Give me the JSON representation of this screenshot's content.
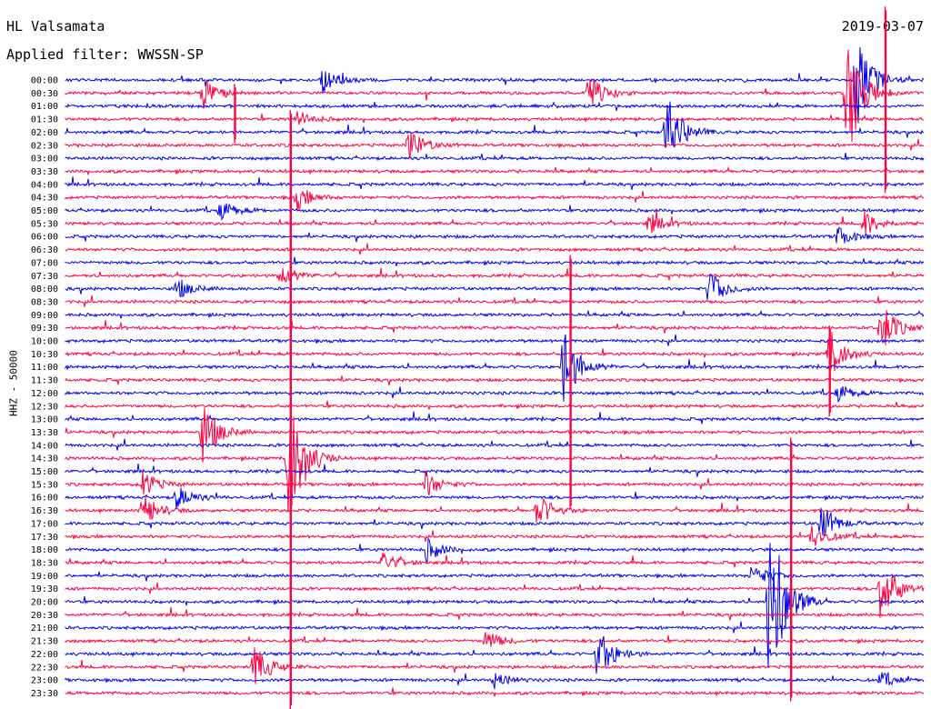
{
  "header": {
    "station": "HL Valsamata",
    "filter": "Applied filter: WWSSN-SP",
    "date": "2019-03-07"
  },
  "chart_data": {
    "type": "line",
    "title": "HL Valsamata",
    "subtitle": "Applied filter: WWSSN-SP",
    "ylabel": "HHZ - 50000",
    "xlabel": "",
    "grid": false,
    "rows": [
      "00:00",
      "00:30",
      "01:00",
      "01:30",
      "02:00",
      "02:30",
      "03:00",
      "03:30",
      "04:00",
      "04:30",
      "05:00",
      "05:30",
      "06:00",
      "06:30",
      "07:00",
      "07:30",
      "08:00",
      "08:30",
      "09:00",
      "09:30",
      "10:00",
      "10:30",
      "11:00",
      "11:30",
      "12:00",
      "12:30",
      "13:00",
      "13:30",
      "14:00",
      "14:30",
      "15:00",
      "15:30",
      "16:00",
      "16:30",
      "17:00",
      "17:30",
      "18:00",
      "18:30",
      "19:00",
      "19:30",
      "20:00",
      "20:30",
      "21:00",
      "21:30",
      "22:00",
      "22:30",
      "23:00",
      "23:30"
    ],
    "colors": {
      "even_rows": "#0000ee",
      "odd_rows": "#ff0040"
    },
    "events": [
      {
        "row": 0,
        "x_frac": 0.3,
        "amp": 14
      },
      {
        "row": 0,
        "x_frac": 0.92,
        "amp": 60
      },
      {
        "row": 1,
        "x_frac": 0.16,
        "amp": 18
      },
      {
        "row": 1,
        "x_frac": 0.61,
        "amp": 22
      },
      {
        "row": 1,
        "x_frac": 0.91,
        "amp": 80
      },
      {
        "row": 3,
        "x_frac": 0.27,
        "amp": 9
      },
      {
        "row": 4,
        "x_frac": 0.7,
        "amp": 45
      },
      {
        "row": 5,
        "x_frac": 0.4,
        "amp": 20
      },
      {
        "row": 9,
        "x_frac": 0.27,
        "amp": 14
      },
      {
        "row": 10,
        "x_frac": 0.18,
        "amp": 12
      },
      {
        "row": 11,
        "x_frac": 0.68,
        "amp": 12
      },
      {
        "row": 11,
        "x_frac": 0.93,
        "amp": 15
      },
      {
        "row": 12,
        "x_frac": 0.9,
        "amp": 12
      },
      {
        "row": 15,
        "x_frac": 0.25,
        "amp": 14
      },
      {
        "row": 16,
        "x_frac": 0.13,
        "amp": 12
      },
      {
        "row": 16,
        "x_frac": 0.75,
        "amp": 22
      },
      {
        "row": 19,
        "x_frac": 0.95,
        "amp": 30
      },
      {
        "row": 21,
        "x_frac": 0.89,
        "amp": 30
      },
      {
        "row": 22,
        "x_frac": 0.58,
        "amp": 45
      },
      {
        "row": 24,
        "x_frac": 0.9,
        "amp": 10
      },
      {
        "row": 27,
        "x_frac": 0.16,
        "amp": 35
      },
      {
        "row": 29,
        "x_frac": 0.26,
        "amp": 90
      },
      {
        "row": 31,
        "x_frac": 0.09,
        "amp": 15
      },
      {
        "row": 31,
        "x_frac": 0.42,
        "amp": 14
      },
      {
        "row": 32,
        "x_frac": 0.13,
        "amp": 14
      },
      {
        "row": 33,
        "x_frac": 0.09,
        "amp": 20
      },
      {
        "row": 33,
        "x_frac": 0.55,
        "amp": 20
      },
      {
        "row": 34,
        "x_frac": 0.88,
        "amp": 22
      },
      {
        "row": 35,
        "x_frac": 0.87,
        "amp": 15
      },
      {
        "row": 36,
        "x_frac": 0.42,
        "amp": 14
      },
      {
        "row": 37,
        "x_frac": 0.37,
        "amp": 12
      },
      {
        "row": 38,
        "x_frac": 0.8,
        "amp": 14
      },
      {
        "row": 39,
        "x_frac": 0.95,
        "amp": 40
      },
      {
        "row": 40,
        "x_frac": 0.82,
        "amp": 120
      },
      {
        "row": 43,
        "x_frac": 0.49,
        "amp": 12
      },
      {
        "row": 44,
        "x_frac": 0.62,
        "amp": 30
      },
      {
        "row": 45,
        "x_frac": 0.22,
        "amp": 25
      },
      {
        "row": 46,
        "x_frac": 0.5,
        "amp": 9
      },
      {
        "row": 46,
        "x_frac": 0.95,
        "amp": 8
      }
    ],
    "spikes": [
      {
        "row": 1,
        "x_frac": 0.197,
        "up": 10,
        "down": 55
      },
      {
        "row": 3,
        "x_frac": 0.262,
        "up": 10,
        "down": 650
      },
      {
        "row": 1,
        "x_frac": 0.955,
        "up": 95,
        "down": 110
      },
      {
        "row": 19,
        "x_frac": 0.588,
        "up": 80,
        "down": 200
      },
      {
        "row": 23,
        "x_frac": 0.89,
        "up": 60,
        "down": 40
      },
      {
        "row": 33,
        "x_frac": 0.845,
        "up": 80,
        "down": 210
      }
    ]
  }
}
